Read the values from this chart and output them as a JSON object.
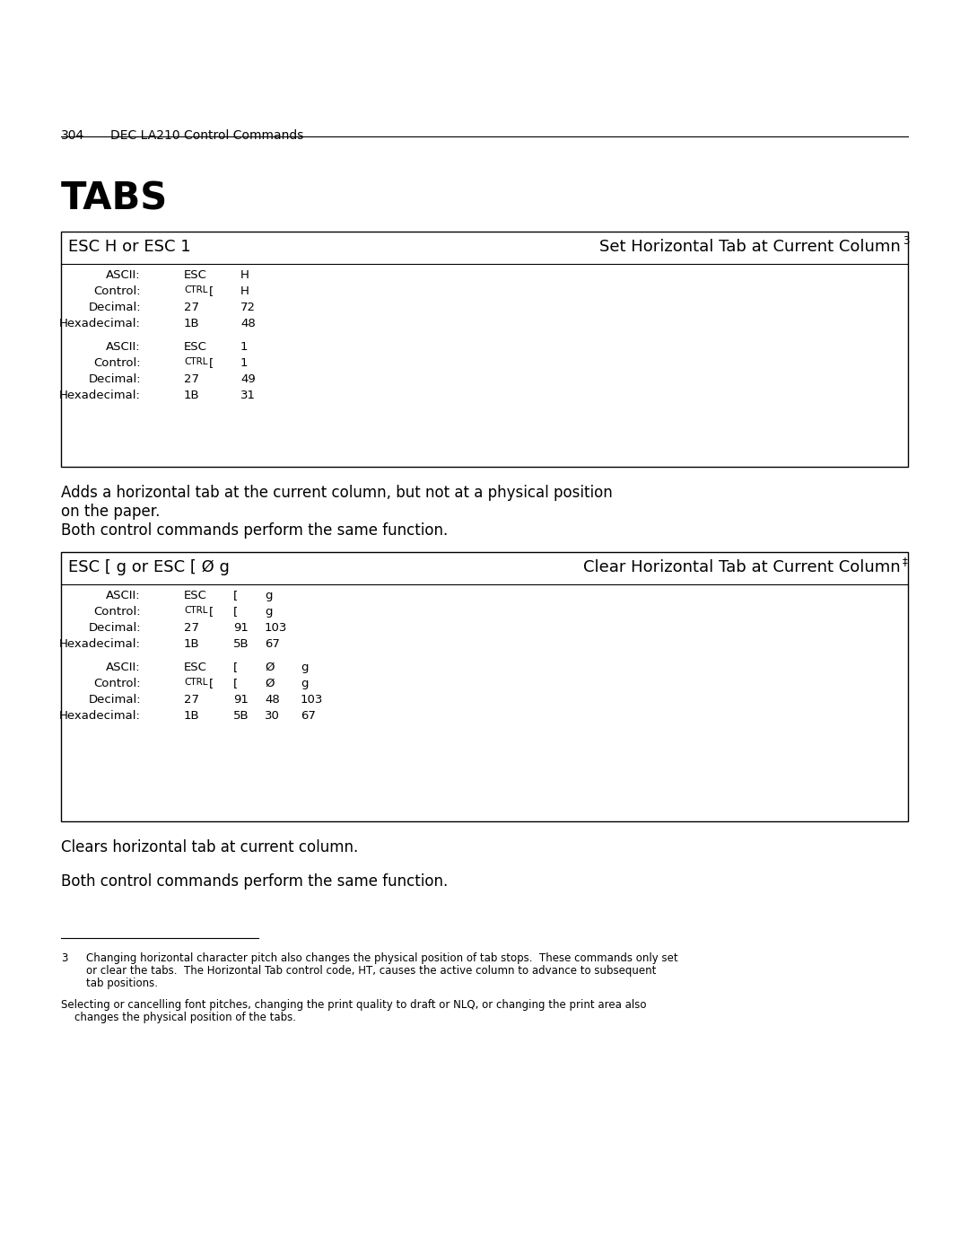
{
  "page_number": "304",
  "page_header": "DEC LA210 Control Commands",
  "title": "TABS",
  "bg_color": "#ffffff",
  "table1_left_label": "ESC H or ESC 1",
  "table1_right_label": "Set Horizontal Tab at Current Column",
  "table1_right_sup": "3",
  "table1_group1": [
    [
      "ASCII:",
      "ESC",
      "H"
    ],
    [
      "Control:",
      "CTRL [",
      "H"
    ],
    [
      "Decimal:",
      "27",
      "72"
    ],
    [
      "Hexadecimal:",
      "1B",
      "48"
    ]
  ],
  "table1_group2": [
    [
      "ASCII:",
      "ESC",
      "1"
    ],
    [
      "Control:",
      "CTRL [",
      "1"
    ],
    [
      "Decimal:",
      "27",
      "49"
    ],
    [
      "Hexadecimal:",
      "1B",
      "31"
    ]
  ],
  "para1": "Adds a horizontal tab at the current column, but not at a physical position\non the paper.",
  "para2": "Both control commands perform the same function.",
  "table2_left_label": "ESC [ g or ESC [ Ø g",
  "table2_right_label": "Clear Horizontal Tab at Current Column",
  "table2_right_sup": "‡",
  "table2_group1": [
    [
      "ASCII:",
      "ESC",
      "[",
      "g",
      ""
    ],
    [
      "Control:",
      "CTRL [",
      "[",
      "g",
      ""
    ],
    [
      "Decimal:",
      "27",
      "91",
      "103",
      ""
    ],
    [
      "Hexadecimal:",
      "1B",
      "5B",
      "67",
      ""
    ]
  ],
  "table2_group2": [
    [
      "ASCII:",
      "ESC",
      "[",
      "Ø",
      "g"
    ],
    [
      "Control:",
      "CTRL [",
      "[",
      "Ø",
      "g"
    ],
    [
      "Decimal:",
      "27",
      "91",
      "48",
      "103"
    ],
    [
      "Hexadecimal:",
      "1B",
      "5B",
      "30",
      "67"
    ]
  ],
  "para3": "Clears horizontal tab at current column.",
  "para4": "Both control commands perform the same function.",
  "footnote_num": "3",
  "footnote_line1": "Changing horizontal character pitch also changes the physical position of tab stops.  These commands only set",
  "footnote_line2": "or clear the tabs.  The Horizontal Tab control code, HT, causes the active column to advance to subsequent",
  "footnote_line3": "tab positions.",
  "footnote2_line1": "Selecting or cancelling font pitches, changing the print quality to draft or NLQ, or changing the print area also",
  "footnote2_line2": "    changes the physical position of the tabs."
}
